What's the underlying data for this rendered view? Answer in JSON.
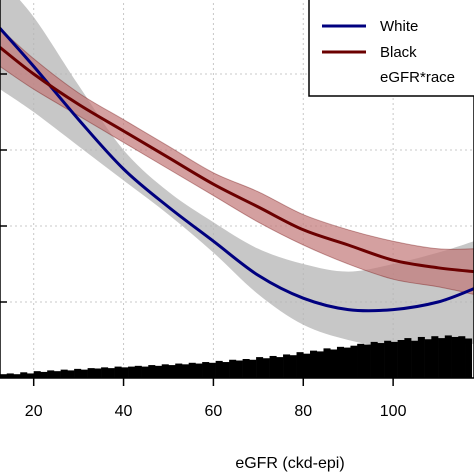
{
  "chart_data": {
    "type": "line",
    "xlabel": "eGFR (ckd-epi)",
    "ylabel": "",
    "xlim": [
      12.5,
      118
    ],
    "ylim": [
      0,
      1
    ],
    "x_ticks": [
      20,
      40,
      60,
      80,
      100
    ],
    "x_tick_labels": [
      "20",
      "40",
      "60",
      "80",
      "100"
    ],
    "grid": true,
    "legend": {
      "position": "top-right",
      "entries": [
        "White",
        "Black",
        "eGFR*race"
      ]
    },
    "series": [
      {
        "name": "White",
        "color": "#00007f",
        "band_color": "#b4b4b4",
        "x": [
          12.5,
          20,
          30,
          40,
          50,
          60,
          70,
          80,
          90,
          100,
          110,
          118
        ],
        "y": [
          0.92,
          0.82,
          0.68,
          0.55,
          0.45,
          0.36,
          0.27,
          0.21,
          0.18,
          0.18,
          0.2,
          0.235
        ],
        "lower": [
          0.76,
          0.7,
          0.61,
          0.52,
          0.43,
          0.33,
          0.22,
          0.14,
          0.1,
          0.08,
          0.08,
          0.09
        ],
        "upper": [
          1.05,
          0.95,
          0.77,
          0.6,
          0.49,
          0.41,
          0.34,
          0.3,
          0.28,
          0.3,
          0.33,
          0.36
        ]
      },
      {
        "name": "Black",
        "color": "#6b0000",
        "band_color": "#c27878",
        "x": [
          12.5,
          20,
          30,
          40,
          50,
          60,
          70,
          80,
          90,
          100,
          110,
          118
        ],
        "y": [
          0.87,
          0.8,
          0.72,
          0.65,
          0.58,
          0.51,
          0.45,
          0.39,
          0.35,
          0.31,
          0.29,
          0.28
        ],
        "lower": [
          0.82,
          0.76,
          0.69,
          0.62,
          0.55,
          0.48,
          0.41,
          0.35,
          0.3,
          0.26,
          0.24,
          0.22
        ],
        "upper": [
          0.92,
          0.84,
          0.75,
          0.68,
          0.61,
          0.54,
          0.49,
          0.43,
          0.39,
          0.36,
          0.34,
          0.34
        ]
      }
    ],
    "histogram": {
      "color": "#000000",
      "bin_start": 12.5,
      "bin_width": 1.5,
      "heights": [
        0.01,
        0.012,
        0.01,
        0.015,
        0.012,
        0.018,
        0.016,
        0.02,
        0.018,
        0.022,
        0.02,
        0.024,
        0.022,
        0.026,
        0.025,
        0.028,
        0.026,
        0.03,
        0.028,
        0.03,
        0.032,
        0.03,
        0.034,
        0.032,
        0.036,
        0.034,
        0.038,
        0.036,
        0.04,
        0.038,
        0.042,
        0.04,
        0.045,
        0.042,
        0.048,
        0.046,
        0.05,
        0.048,
        0.055,
        0.052,
        0.058,
        0.055,
        0.062,
        0.06,
        0.068,
        0.064,
        0.072,
        0.07,
        0.078,
        0.075,
        0.082,
        0.08,
        0.085,
        0.09,
        0.088,
        0.095,
        0.092,
        0.098,
        0.095,
        0.1,
        0.105,
        0.098,
        0.108,
        0.102,
        0.11,
        0.105,
        0.112,
        0.108,
        0.11,
        0.104
      ]
    }
  }
}
